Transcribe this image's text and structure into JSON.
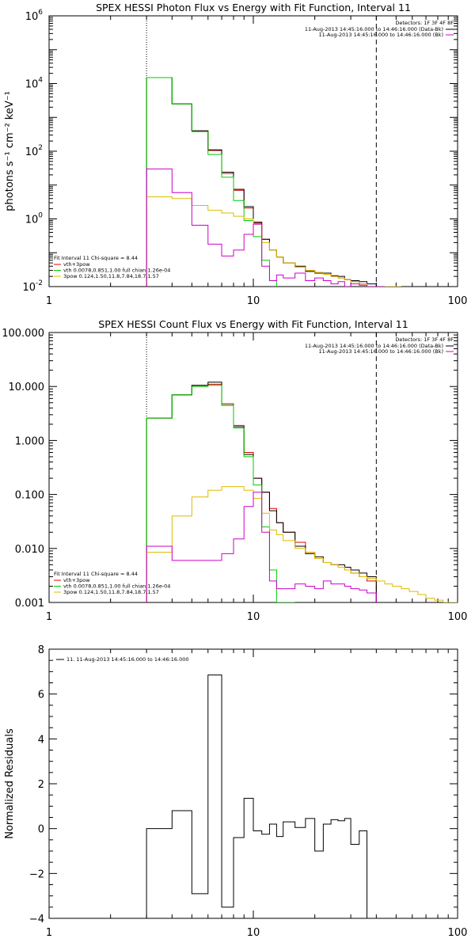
{
  "chart_data": [
    {
      "type": "line",
      "title": "SPEX HESSI Photon Flux vs Energy with Fit Function, Interval 11",
      "ylabel": "photons s⁻¹ cm⁻² keV⁻¹",
      "xlabel": "",
      "x_scale": "log",
      "y_scale": "log",
      "xlim": [
        1,
        100
      ],
      "ylim": [
        0.01,
        1000000
      ],
      "x_ticks": [
        {
          "v": 1,
          "label": "1"
        },
        {
          "v": 10,
          "label": "10"
        },
        {
          "v": 100,
          "label": "100"
        }
      ],
      "y_ticks": [
        {
          "v": 0.01,
          "base": "10",
          "exp": "-2"
        },
        {
          "v": 1,
          "base": "10",
          "exp": "0"
        },
        {
          "v": 100,
          "base": "10",
          "exp": "2"
        },
        {
          "v": 10000,
          "base": "10",
          "exp": "4"
        },
        {
          "v": 1000000,
          "base": "10",
          "exp": "6"
        }
      ],
      "vlines": [
        {
          "x": 3,
          "style": "dotted"
        },
        {
          "x": 40,
          "style": "dashed"
        }
      ],
      "legend_topright": {
        "header": "Detectors: 1F 3F 4F 8F",
        "entries": [
          {
            "label": "11-Aug-2013 14:45:16.000 to 14:46:16.000 (Data-Bk)",
            "color": "#000000"
          },
          {
            "label": "11-Aug-2013 14:45:16.000 to 14:46:16.000 (Bk)",
            "color": "#cc00cc"
          }
        ]
      },
      "legend_bottomleft": {
        "header": "Fit Interval 11   Chi-square = 8.44",
        "entries": [
          {
            "label": "vth+3pow",
            "color": "#dd0000"
          },
          {
            "label": "vth 0.0078,0.851,1.00  full chian 1.26e-04",
            "color": "#00cc00"
          },
          {
            "label": "3pow 0.124,1.50,11.8,7.84,18.7,1.57",
            "color": "#ddbb00"
          }
        ]
      },
      "edges": [
        3,
        4,
        5,
        6,
        7,
        8,
        9,
        10,
        11,
        12,
        13,
        14,
        16,
        18,
        20,
        22,
        24,
        26,
        28,
        30,
        33,
        36,
        40,
        44,
        48,
        53
      ],
      "series": [
        {
          "label": "vth+3pow",
          "color": "#dd0000",
          "width": 1,
          "values": [
            15000,
            2500,
            400,
            105,
            22,
            7,
            2.1,
            0.75,
            0.25,
            0.12,
            0.075,
            0.05,
            0.038,
            0.03,
            0.026,
            0.023,
            0.02,
            0.018,
            0.016,
            0.014,
            0.012,
            0.01,
            0.0085,
            null,
            null
          ]
        },
        {
          "label": "Data-Bk",
          "color": "#000000",
          "width": 1,
          "values": [
            15000,
            2500,
            400,
            110,
            24,
            7.5,
            2.3,
            0.8,
            0.25,
            0.12,
            0.075,
            0.05,
            0.04,
            0.028,
            0.025,
            0.025,
            0.021,
            0.02,
            0.016,
            0.015,
            0.014,
            0.012,
            0.01,
            null,
            null
          ]
        },
        {
          "label": "vth",
          "color": "#00cc00",
          "width": 1,
          "values": [
            15000,
            2500,
            380,
            80,
            17,
            3.5,
            0.9,
            0.3,
            0.06,
            0.015,
            null,
            null,
            null,
            null,
            null,
            null,
            null,
            null,
            null,
            null,
            null,
            null,
            null,
            null,
            null
          ]
        },
        {
          "label": "3pow",
          "color": "#ddbb00",
          "width": 1,
          "values": [
            4.5,
            4.0,
            2.5,
            1.8,
            1.5,
            1.2,
            1.0,
            0.7,
            0.2,
            0.12,
            0.075,
            0.05,
            0.038,
            0.03,
            0.026,
            0.023,
            0.02,
            0.018,
            0.016,
            0.014,
            0.012,
            0.01,
            0.0085,
            0.007,
            0.006
          ]
        },
        {
          "label": "Bk",
          "color": "#cc00cc",
          "width": 1,
          "values": [
            30,
            6,
            0.65,
            0.18,
            0.08,
            0.12,
            0.35,
            0.7,
            0.04,
            0.015,
            0.022,
            0.018,
            0.025,
            0.015,
            0.018,
            0.015,
            0.012,
            0.014,
            0.01,
            0.012,
            0.011,
            0.009,
            0.008,
            null,
            null
          ]
        }
      ]
    },
    {
      "type": "line",
      "title": "SPEX HESSI Count Flux vs Energy with Fit Function, Interval 11",
      "ylabel": "",
      "xlabel": "",
      "x_scale": "log",
      "y_scale": "log",
      "xlim": [
        1,
        100
      ],
      "ylim": [
        0.001,
        100
      ],
      "x_ticks": [
        {
          "v": 1,
          "label": "1"
        },
        {
          "v": 10,
          "label": "10"
        },
        {
          "v": 100,
          "label": "100"
        }
      ],
      "y_ticks": [
        {
          "v": 0.001,
          "label": "0.001"
        },
        {
          "v": 0.01,
          "label": "0.010"
        },
        {
          "v": 0.1,
          "label": "0.100"
        },
        {
          "v": 1,
          "label": "1.000"
        },
        {
          "v": 10,
          "label": "10.000"
        },
        {
          "v": 100,
          "label": "100.000"
        }
      ],
      "vlines": [
        {
          "x": 3,
          "style": "dotted"
        },
        {
          "x": 40,
          "style": "dashed"
        }
      ],
      "legend_topright": {
        "header": "Detectors: 1F 3F 4F 8F",
        "entries": [
          {
            "label": "11-Aug-2013 14:45:16.000 to 14:46:16.000 (Data-Bk)",
            "color": "#000000"
          },
          {
            "label": "11-Aug-2013 14:45:16.000 to 14:46:16.000 (Bk)",
            "color": "#cc00cc"
          }
        ]
      },
      "legend_bottomleft": {
        "header": "Fit Interval 11   Chi-square = 8.44",
        "entries": [
          {
            "label": "vth+3pow",
            "color": "#dd0000"
          },
          {
            "label": "vth 0.0078,0.851,1.00  full chian 1.26e-04",
            "color": "#00cc00"
          },
          {
            "label": "3pow 0.124,1.50,11.8,7.84,18.7,1.57",
            "color": "#ddbb00"
          }
        ]
      },
      "edges": [
        3,
        4,
        5,
        6,
        7,
        8,
        9,
        10,
        11,
        12,
        13,
        14,
        16,
        18,
        20,
        22,
        24,
        26,
        28,
        30,
        33,
        36,
        40,
        44,
        48,
        53,
        58,
        64,
        70,
        77,
        85,
        93,
        100
      ],
      "series": [
        {
          "label": "vth+3pow",
          "color": "#dd0000",
          "width": 1,
          "values": [
            2.6,
            7,
            10.5,
            11,
            4.8,
            1.9,
            0.6,
            0.2,
            0.11,
            0.055,
            0.03,
            0.02,
            0.013,
            0.0085,
            0.0065,
            0.0055,
            0.005,
            0.0045,
            0.004,
            0.0035,
            0.003,
            0.0025,
            null,
            null,
            null,
            null,
            null,
            null,
            null,
            null,
            null,
            null
          ]
        },
        {
          "label": "Data-Bk",
          "color": "#000000",
          "width": 1,
          "values": [
            2.6,
            7,
            10.5,
            12,
            4.5,
            1.8,
            0.55,
            0.2,
            0.11,
            0.05,
            0.03,
            0.02,
            0.011,
            0.008,
            0.007,
            0.0055,
            0.005,
            0.005,
            0.0045,
            0.004,
            0.0035,
            0.003,
            null,
            null,
            null,
            null,
            null,
            null,
            null,
            null,
            null,
            null
          ]
        },
        {
          "label": "vth",
          "color": "#00cc00",
          "width": 1,
          "values": [
            2.6,
            7,
            10,
            10.5,
            4.5,
            1.7,
            0.5,
            0.15,
            0.025,
            0.004,
            0.001,
            0.0007,
            null,
            null,
            null,
            null,
            null,
            null,
            null,
            null,
            null,
            null,
            null,
            null,
            null,
            null,
            null,
            null,
            null,
            null,
            null,
            null
          ]
        },
        {
          "label": "3pow",
          "color": "#ddbb00",
          "width": 1,
          "values": [
            0.0085,
            0.04,
            0.09,
            0.12,
            0.14,
            0.14,
            0.12,
            0.085,
            0.045,
            0.022,
            0.018,
            0.014,
            0.01,
            0.0085,
            0.0065,
            0.0055,
            0.005,
            0.0045,
            0.004,
            0.0035,
            0.003,
            0.0028,
            0.0025,
            0.0022,
            0.002,
            0.0018,
            0.0016,
            0.0014,
            0.0012,
            0.0011,
            0.001,
            0.0009
          ]
        },
        {
          "label": "Bk",
          "color": "#cc00cc",
          "width": 1,
          "values": [
            0.011,
            0.006,
            0.006,
            0.006,
            0.008,
            0.015,
            0.06,
            0.11,
            0.02,
            0.0025,
            0.0018,
            0.0018,
            0.0022,
            0.002,
            0.0018,
            0.0025,
            0.0022,
            0.0022,
            0.002,
            0.0018,
            0.0017,
            0.0015,
            null,
            null,
            null,
            null,
            null,
            null,
            null,
            null,
            null,
            null
          ]
        }
      ]
    },
    {
      "type": "line",
      "title": "",
      "ylabel": "Normalized Residuals",
      "xlabel": "",
      "x_scale": "log",
      "y_scale": "linear",
      "xlim": [
        1,
        100
      ],
      "ylim": [
        -4,
        8
      ],
      "x_ticks": [
        {
          "v": 1,
          "label": "1"
        },
        {
          "v": 10,
          "label": "10"
        },
        {
          "v": 100,
          "label": "100"
        }
      ],
      "y_ticks": [
        {
          "v": -4,
          "label": "−4"
        },
        {
          "v": -2,
          "label": "−2"
        },
        {
          "v": 0,
          "label": "0"
        },
        {
          "v": 2,
          "label": "2"
        },
        {
          "v": 4,
          "label": "4"
        },
        {
          "v": 6,
          "label": "6"
        },
        {
          "v": 8,
          "label": "8"
        }
      ],
      "vlines": [],
      "legend_topleft": {
        "entries": [
          {
            "label": "11. 11-Aug-2013 14:45:16.000 to 14:46:16.000",
            "color": "#000000"
          }
        ]
      },
      "edges": [
        3,
        4,
        5,
        6,
        7,
        8,
        9,
        10,
        11,
        12,
        13,
        14,
        16,
        18,
        20,
        22,
        24,
        26,
        28,
        30,
        33,
        36,
        40
      ],
      "series": [
        {
          "label": "residuals",
          "color": "#000000",
          "width": 1,
          "values": [
            0.0,
            0.8,
            -2.9,
            6.85,
            -3.5,
            -0.4,
            1.35,
            -0.1,
            -0.25,
            0.2,
            -0.35,
            0.3,
            0.05,
            0.45,
            -1.0,
            0.2,
            0.4,
            0.35,
            0.45,
            -0.7,
            -0.1,
            null
          ]
        }
      ]
    }
  ]
}
